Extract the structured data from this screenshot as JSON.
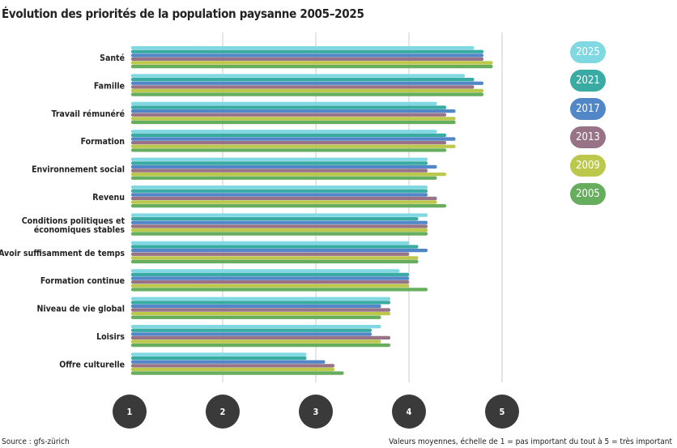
{
  "title": "Évolution des priorités de la population paysanne 2005–2025",
  "source": "Source : gfs-zürich",
  "note": "Valeurs moyennes, échelle de 1 = pas important du tout à 5 = très important",
  "chart_data": {
    "type": "bar",
    "orientation": "horizontal",
    "title": "Évolution des priorités de la population paysanne 2005–2025",
    "xlim": [
      1,
      5
    ],
    "xticks": [
      "1",
      "2",
      "3",
      "4",
      "5"
    ],
    "grid": true,
    "legend_position": "right",
    "categories": [
      "Santé",
      "Famille",
      "Travail rémunéré",
      "Formation",
      "Environnement social",
      "Revenu",
      "Conditions politiques et économiques stables",
      "Avoir suffisamment de temps",
      "Formation continue",
      "Niveau de vie global",
      "Loisirs",
      "Offre culturelle"
    ],
    "category_lines": [
      [
        "Santé"
      ],
      [
        "Famille"
      ],
      [
        "Travail rémunéré"
      ],
      [
        "Formation"
      ],
      [
        "Environnement social"
      ],
      [
        "Revenu"
      ],
      [
        "Conditions politiques et",
        "économiques stables"
      ],
      [
        "Avoir suffisamment de temps"
      ],
      [
        "Formation continue"
      ],
      [
        "Niveau de vie global"
      ],
      [
        "Loisirs"
      ],
      [
        "Offre culturelle"
      ]
    ],
    "series": [
      {
        "name": "2025",
        "color": "#7fd8e2",
        "values": [
          4.7,
          4.6,
          4.3,
          4.3,
          4.2,
          4.2,
          4.2,
          4.0,
          3.9,
          3.8,
          3.7,
          2.9
        ]
      },
      {
        "name": "2021",
        "color": "#3aaba3",
        "values": [
          4.8,
          4.7,
          4.4,
          4.4,
          4.2,
          4.2,
          4.1,
          4.1,
          4.0,
          3.8,
          3.6,
          2.9
        ]
      },
      {
        "name": "2017",
        "color": "#5187c7",
        "values": [
          4.8,
          4.8,
          4.5,
          4.5,
          4.3,
          4.2,
          4.2,
          4.2,
          4.0,
          3.7,
          3.6,
          3.1
        ]
      },
      {
        "name": "2013",
        "color": "#987286",
        "values": [
          4.8,
          4.7,
          4.4,
          4.4,
          4.2,
          4.3,
          4.2,
          4.0,
          4.0,
          3.8,
          3.8,
          3.2
        ]
      },
      {
        "name": "2009",
        "color": "#bcc84c",
        "values": [
          4.9,
          4.8,
          4.5,
          4.5,
          4.4,
          4.3,
          4.2,
          4.1,
          4.0,
          3.8,
          3.7,
          3.2
        ]
      },
      {
        "name": "2005",
        "color": "#66ad5e",
        "values": [
          4.9,
          4.8,
          4.5,
          4.4,
          4.3,
          4.4,
          4.2,
          4.1,
          4.2,
          3.7,
          3.8,
          3.3
        ]
      }
    ]
  }
}
